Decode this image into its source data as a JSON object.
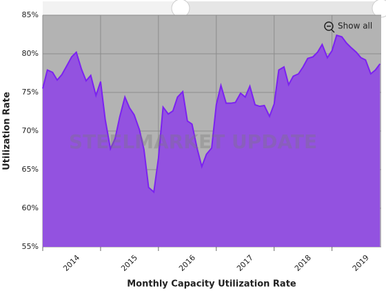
{
  "chart_data": {
    "type": "area",
    "xlabel": "Monthly Capacity Utilization Rate",
    "ylabel": "Utilization Rate",
    "watermark": "STEELMARKET UPDATE",
    "button": "Show all",
    "color": "#9352e0",
    "line_color": "#7b22f0",
    "background": "#b3b3b3",
    "grid": true,
    "xlim": [
      2014,
      2019.85
    ],
    "xticks": [
      2014,
      2015,
      2016,
      2017,
      2018,
      2019
    ],
    "ylim": [
      55,
      85
    ],
    "yticks": [
      {
        "value": 55,
        "label": "55%"
      },
      {
        "value": 60,
        "label": "60%"
      },
      {
        "value": 65,
        "label": "65%"
      },
      {
        "value": 70,
        "label": "70%"
      },
      {
        "value": 75,
        "label": "75%"
      },
      {
        "value": 80,
        "label": "80%"
      },
      {
        "value": 85,
        "label": "85%"
      }
    ],
    "x": [
      2014,
      2014.08,
      2014.17,
      2014.25,
      2014.33,
      2014.42,
      2014.5,
      2014.58,
      2014.67,
      2014.75,
      2014.83,
      2014.92,
      2015,
      2015.08,
      2015.17,
      2015.25,
      2015.33,
      2015.42,
      2015.5,
      2015.58,
      2015.67,
      2015.75,
      2015.83,
      2015.92,
      2016,
      2016.08,
      2016.17,
      2016.25,
      2016.33,
      2016.42,
      2016.5,
      2016.58,
      2016.67,
      2016.75,
      2016.83,
      2016.92,
      2017,
      2017.08,
      2017.17,
      2017.25,
      2017.33,
      2017.42,
      2017.5,
      2017.58,
      2017.67,
      2017.75,
      2017.83,
      2017.92,
      2018,
      2018.08,
      2018.17,
      2018.25,
      2018.33,
      2018.42,
      2018.5,
      2018.58,
      2018.67,
      2018.75,
      2018.83,
      2018.92,
      2019,
      2019.08,
      2019.17,
      2019.25,
      2019.33,
      2019.42,
      2019.5,
      2019.58,
      2019.67,
      2019.75,
      2019.83
    ],
    "values": [
      75.5,
      77.9,
      77.6,
      76.6,
      77.3,
      78.5,
      79.6,
      80.2,
      78.0,
      76.5,
      77.2,
      74.6,
      76.4,
      71.5,
      67.7,
      69.0,
      71.8,
      74.4,
      73.0,
      72.1,
      70.2,
      67.6,
      62.7,
      62.1,
      66.5,
      73.1,
      72.2,
      72.6,
      74.4,
      75.1,
      71.3,
      70.9,
      67.7,
      65.4,
      67.0,
      67.8,
      73.4,
      75.9,
      73.6,
      73.6,
      73.7,
      74.9,
      74.4,
      75.8,
      73.4,
      73.2,
      73.3,
      71.9,
      73.5,
      77.9,
      78.3,
      76.0,
      77.1,
      77.4,
      78.3,
      79.4,
      79.6,
      80.2,
      81.2,
      79.5,
      80.4,
      82.4,
      82.2,
      81.4,
      80.8,
      80.2,
      79.5,
      79.2,
      77.4,
      77.9,
      78.7
    ]
  }
}
